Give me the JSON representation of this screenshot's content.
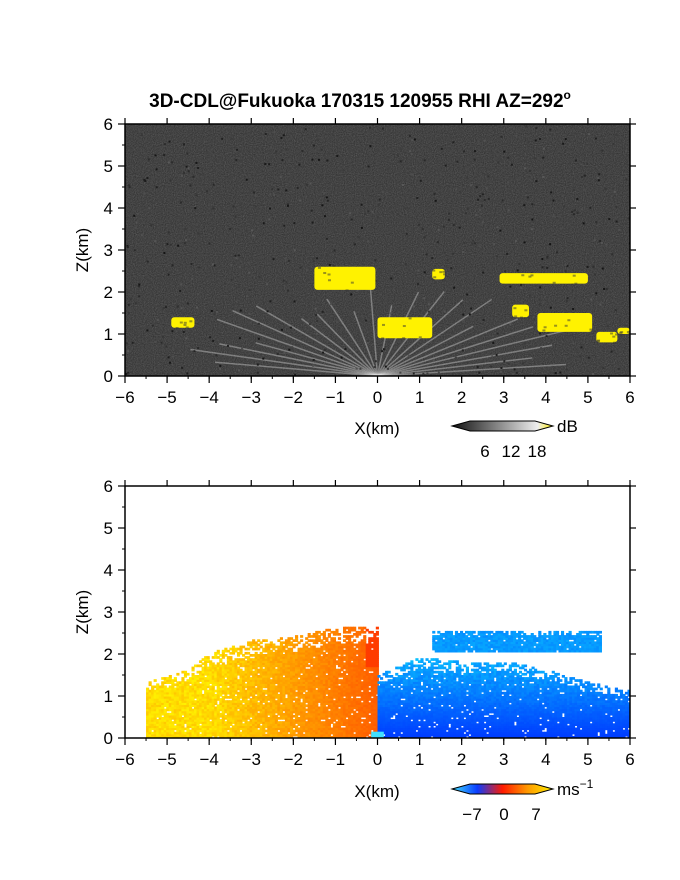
{
  "chart_data": [
    {
      "type": "heatmap",
      "title": "3D-CDL@Fukuoka 170315 120955 RHI AZ=292",
      "title_superscript": "o",
      "xlabel": "X(km)",
      "ylabel": "Z(km)",
      "xlim": [
        -6,
        6
      ],
      "ylim": [
        0,
        6
      ],
      "xticks": [
        -6,
        -5,
        -4,
        -3,
        -2,
        -1,
        0,
        1,
        2,
        3,
        4,
        5,
        6
      ],
      "yticks": [
        0,
        1,
        2,
        3,
        4,
        5,
        6
      ],
      "colorbar": {
        "unit": "dB",
        "ticks": [
          6,
          12,
          18
        ],
        "range": [
          0,
          20
        ]
      },
      "background": "#2a2a2a",
      "colormap": "grayscale with yellow saturation",
      "yellow_patches": [
        {
          "x0": -1.5,
          "x1": -0.05,
          "z0": 2.05,
          "z1": 2.6
        },
        {
          "x0": 0.0,
          "x1": 1.3,
          "z0": 0.9,
          "z1": 1.4
        },
        {
          "x0": 1.3,
          "x1": 1.6,
          "z0": 2.3,
          "z1": 2.55
        },
        {
          "x0": 2.9,
          "x1": 5.0,
          "z0": 2.2,
          "z1": 2.45
        },
        {
          "x0": 3.2,
          "x1": 3.6,
          "z0": 1.4,
          "z1": 1.7
        },
        {
          "x0": 3.8,
          "x1": 5.1,
          "z0": 1.05,
          "z1": 1.5
        },
        {
          "x0": 5.2,
          "x1": 5.7,
          "z0": 0.8,
          "z1": 1.05
        },
        {
          "x0": 5.7,
          "x1": 6.0,
          "z0": 1.0,
          "z1": 1.15
        },
        {
          "x0": -4.9,
          "x1": -4.35,
          "z0": 1.15,
          "z1": 1.4
        }
      ]
    },
    {
      "type": "heatmap",
      "xlabel": "X(km)",
      "ylabel": "Z(km)",
      "xlim": [
        -6,
        6
      ],
      "ylim": [
        0,
        6
      ],
      "xticks": [
        -6,
        -5,
        -4,
        -3,
        -2,
        -1,
        0,
        1,
        2,
        3,
        4,
        5,
        6
      ],
      "yticks": [
        0,
        1,
        2,
        3,
        4,
        5,
        6
      ],
      "colorbar": {
        "unit": "ms",
        "unit_superscript": "−1",
        "ticks": [
          "−7",
          "0",
          "7"
        ],
        "range": [
          -10,
          10
        ]
      },
      "background": "#ffffff",
      "colormap": "cyan-blue-red-orange-yellow",
      "regions": [
        {
          "sign": "positive",
          "x0": -5.5,
          "x1": 0.0,
          "z_top_profile": [
            [
              -5.5,
              1.3
            ],
            [
              -4.5,
              1.6
            ],
            [
              -4.0,
              2.0
            ],
            [
              -3.0,
              2.3
            ],
            [
              -2.0,
              2.4
            ],
            [
              -1.0,
              2.6
            ],
            [
              0.0,
              2.6
            ]
          ],
          "vmin": 2,
          "vmax": 7
        },
        {
          "sign": "negative",
          "x0": 0.0,
          "x1": 6.0,
          "z_top_profile": [
            [
              0.0,
              1.5
            ],
            [
              1.0,
              1.9
            ],
            [
              2.0,
              1.8
            ],
            [
              3.0,
              1.8
            ],
            [
              4.0,
              1.6
            ],
            [
              5.0,
              1.3
            ],
            [
              6.0,
              1.1
            ]
          ],
          "vmin": -9,
          "vmax": -3
        },
        {
          "sign": "negative",
          "x0": 1.3,
          "x1": 5.3,
          "z0": 2.05,
          "z1": 2.5,
          "vmin": -7,
          "vmax": -4
        }
      ]
    }
  ]
}
